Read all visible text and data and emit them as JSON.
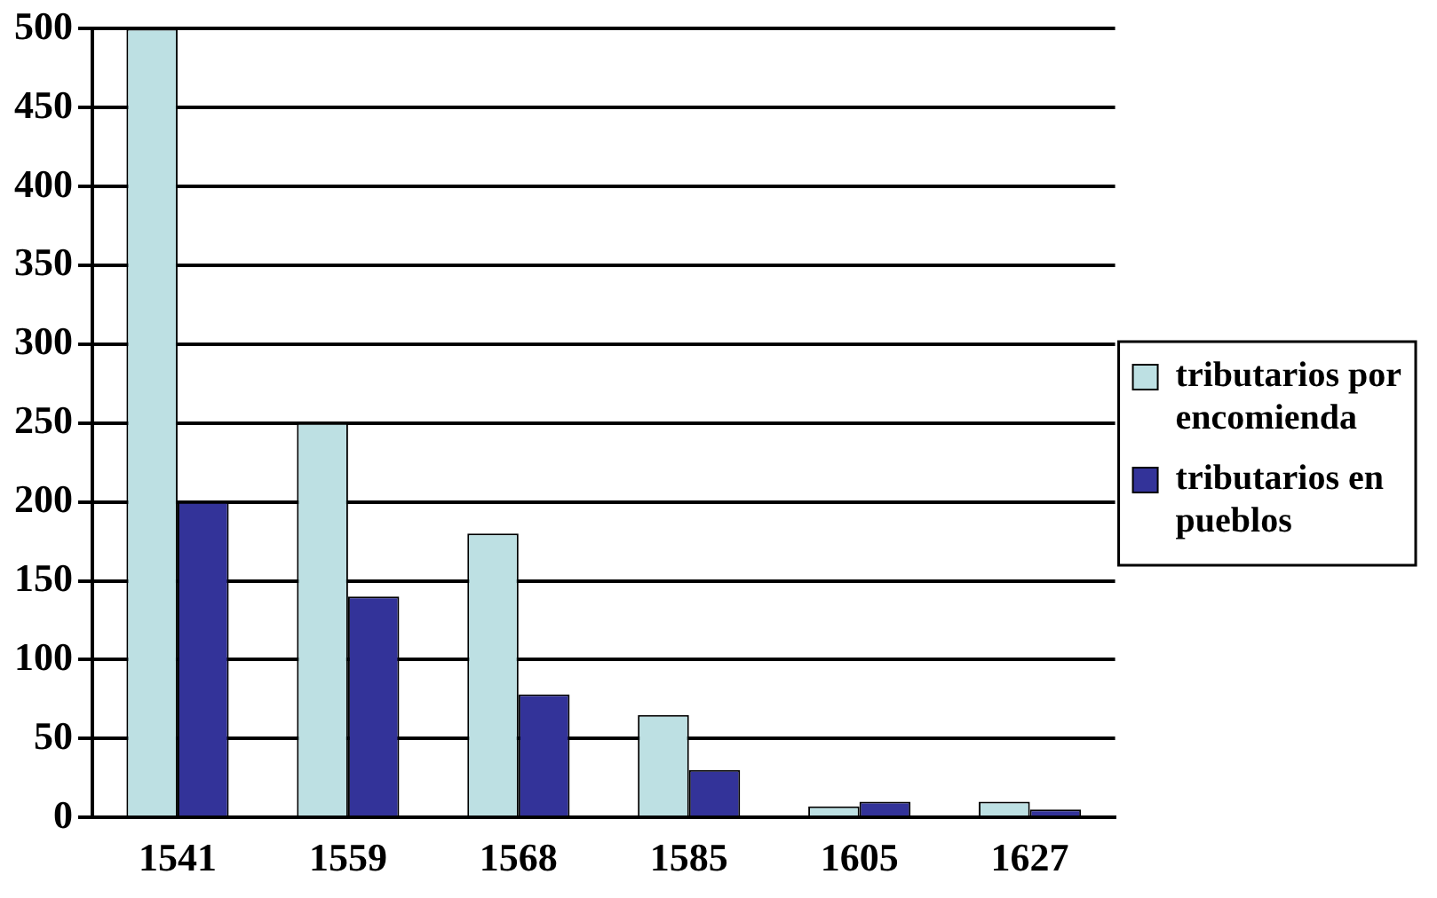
{
  "chart_data": {
    "type": "bar",
    "categories": [
      "1541",
      "1559",
      "1568",
      "1585",
      "1605",
      "1627"
    ],
    "series": [
      {
        "name": "tributarios por encomienda",
        "color": "#bde0e3",
        "values": [
          500,
          250,
          180,
          65,
          7,
          10
        ]
      },
      {
        "name": "tributarios en pueblos",
        "color": "#333399",
        "values": [
          200,
          140,
          78,
          30,
          10,
          5
        ]
      }
    ],
    "ylim": [
      0,
      500
    ],
    "yticks": [
      0,
      50,
      100,
      150,
      200,
      250,
      300,
      350,
      400,
      450,
      500
    ],
    "grid": "y",
    "legend": "right"
  }
}
